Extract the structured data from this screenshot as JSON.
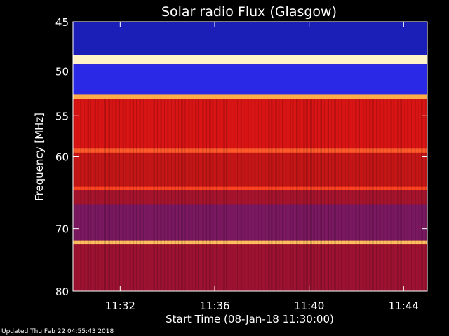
{
  "chart_data": {
    "type": "heatmap",
    "title": "Solar radio Flux (Glasgow)",
    "xlabel": "Start Time (08-Jan-18 11:30:00)",
    "ylabel": "Frequency [MHz]",
    "x_range": [
      "11:30:00",
      "11:45:00"
    ],
    "ylim": [
      45,
      80
    ],
    "y_ticks": [
      45,
      50,
      55,
      60,
      70,
      80
    ],
    "x_ticks": [
      "11:32",
      "11:36",
      "11:40",
      "11:44"
    ],
    "bands": [
      {
        "from": 45.0,
        "to": 48.3,
        "color": "#1b1fb8"
      },
      {
        "from": 48.3,
        "to": 49.3,
        "color": "#fff4c8"
      },
      {
        "from": 49.3,
        "to": 52.6,
        "color": "#2a2ae6"
      },
      {
        "from": 52.6,
        "to": 53.1,
        "color": "#ffae4a"
      },
      {
        "from": 53.1,
        "to": 59.0,
        "color": "#d81414"
      },
      {
        "from": 59.0,
        "to": 59.5,
        "color": "#ff5a2a"
      },
      {
        "from": 59.5,
        "to": 64.0,
        "color": "#c41616"
      },
      {
        "from": 64.0,
        "to": 64.5,
        "color": "#ff4422"
      },
      {
        "from": 64.5,
        "to": 66.5,
        "color": "#a5142c"
      },
      {
        "from": 66.5,
        "to": 71.8,
        "color": "#7a1860"
      },
      {
        "from": 71.8,
        "to": 72.4,
        "color": "#ffc060"
      },
      {
        "from": 72.4,
        "to": 80.0,
        "color": "#9c1230"
      }
    ],
    "colors": {
      "low": "#0a0a80",
      "mid": "#d01818",
      "high": "#ffffe0"
    }
  },
  "footer": "Updated Thu Feb 22 04:55:43 2018"
}
